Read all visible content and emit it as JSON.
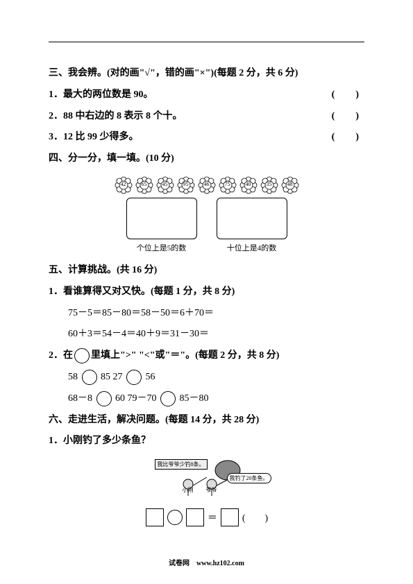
{
  "section3": {
    "title": "三、我会辨。(对的画\"√\"，错的画\"×\")(每题 2 分，共 6 分)",
    "q1": "1．最大的两位数是 90。",
    "q2": "2．88 中右边的 8 表示 8 个十。",
    "q3": "3．12 比 99 少得多。",
    "paren": "(　)"
  },
  "section4": {
    "title": "四、分一分，填一填。(10 分)",
    "flowers": [
      "42",
      "65",
      "45",
      "95",
      "46",
      "75",
      "40",
      "35",
      "48"
    ],
    "box1_label": "个位上是5的数",
    "box2_label": "十位上是4的数"
  },
  "section5": {
    "title": "五、计算挑战。(共 16 分)",
    "q1_title": "1．看谁算得又对又快。(每题 1 分，共 8 分)",
    "q1_line1": "75－5＝85－80＝58－50＝6＋70＝",
    "q1_line2": "60＋3＝54－4＝40＋9＝31－30＝",
    "q2_title": "2．在　　里填上\">\" \"<\"或\"=\"。(每题 2 分，共 8 分)",
    "q2_a1": "58",
    "q2_a2": "85  27",
    "q2_a3": "56",
    "q2_b1": "68－8",
    "q2_b2": "60  79－70",
    "q2_b3": "85－80"
  },
  "section6": {
    "title": "六、走进生活，解决问题。(每题 14 分，共 28 分)",
    "q1": "1．小刚钓了多少条鱼？",
    "speech1": "我比爷爷少钓8条。",
    "speech2": "我钓了20条鱼。",
    "p1": "小刚",
    "p2": "爷爷",
    "eq_tail": "(　　)"
  },
  "footer": "试卷网　www.hz102.com"
}
